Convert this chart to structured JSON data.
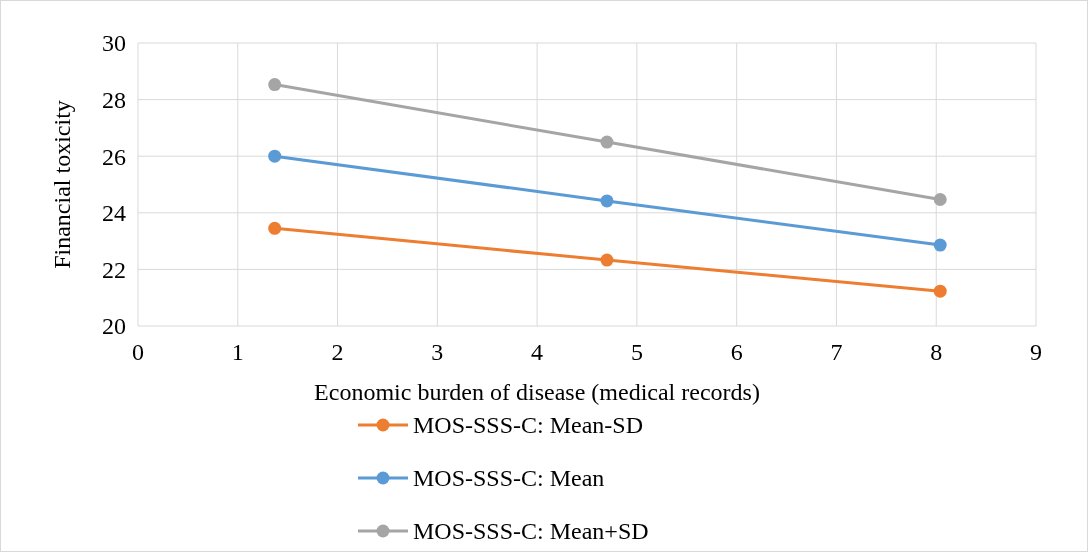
{
  "chart_data": {
    "type": "line",
    "xlabel": "Economic burden of disease (medical records)",
    "ylabel": "Financial toxicity",
    "xlim": [
      0,
      9
    ],
    "xticks": [
      0,
      1,
      2,
      3,
      4,
      5,
      6,
      7,
      8,
      9
    ],
    "ylim": [
      20,
      30
    ],
    "yticks": [
      20,
      22,
      24,
      26,
      28,
      30
    ],
    "grid": true,
    "legend": "bottom",
    "marker": "circle",
    "line_style": "solid",
    "series": [
      {
        "name": "MOS-SSS-C: Mean-SD",
        "color": "#ed7d31",
        "x": [
          1.37,
          4.7,
          8.04
        ],
        "values": [
          23.45,
          22.33,
          21.23
        ]
      },
      {
        "name": "MOS-SSS-C: Mean",
        "color": "#5b9bd5",
        "x": [
          1.37,
          4.7,
          8.04
        ],
        "values": [
          26.0,
          24.42,
          22.86
        ]
      },
      {
        "name": "MOS-SSS-C: Mean+SD",
        "color": "#a5a5a5",
        "x": [
          1.37,
          4.7,
          8.04
        ],
        "values": [
          28.53,
          26.5,
          24.47
        ]
      }
    ]
  }
}
